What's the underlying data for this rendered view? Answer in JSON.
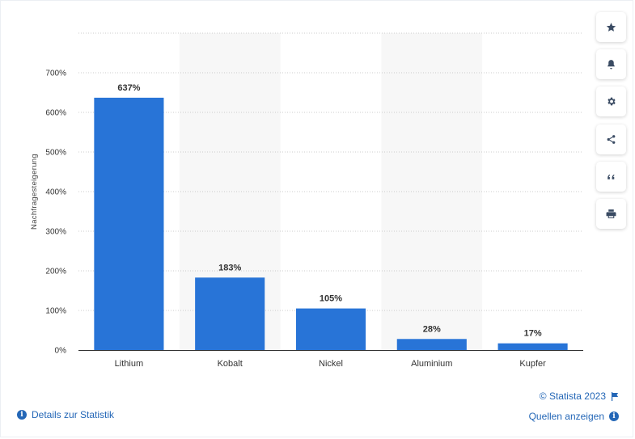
{
  "chart_data": {
    "type": "bar",
    "categories": [
      "Lithium",
      "Kobalt",
      "Nickel",
      "Aluminium",
      "Kupfer"
    ],
    "values": [
      637,
      183,
      105,
      28,
      17
    ],
    "data_labels": [
      "637%",
      "183%",
      "105%",
      "28%",
      "17%"
    ],
    "ylabel": "Nachfragesteigerung",
    "xlabel": "",
    "ylim": [
      0,
      800
    ],
    "yticks": [
      0,
      100,
      200,
      300,
      400,
      500,
      600,
      700
    ],
    "ytick_labels": [
      "0%",
      "100%",
      "200%",
      "300%",
      "400%",
      "500%",
      "600%",
      "700%"
    ],
    "bar_color": "#2874d7",
    "stripe_color": "#f7f7f7",
    "grid": true
  },
  "toolbar": {
    "icons": [
      "star-icon",
      "bell-icon",
      "gear-icon",
      "share-icon",
      "quote-icon",
      "print-icon"
    ]
  },
  "footer": {
    "details_label": "Details zur Statistik",
    "copyright": "© Statista 2023",
    "sources_label": "Quellen anzeigen",
    "accent_color": "#2467b7"
  }
}
